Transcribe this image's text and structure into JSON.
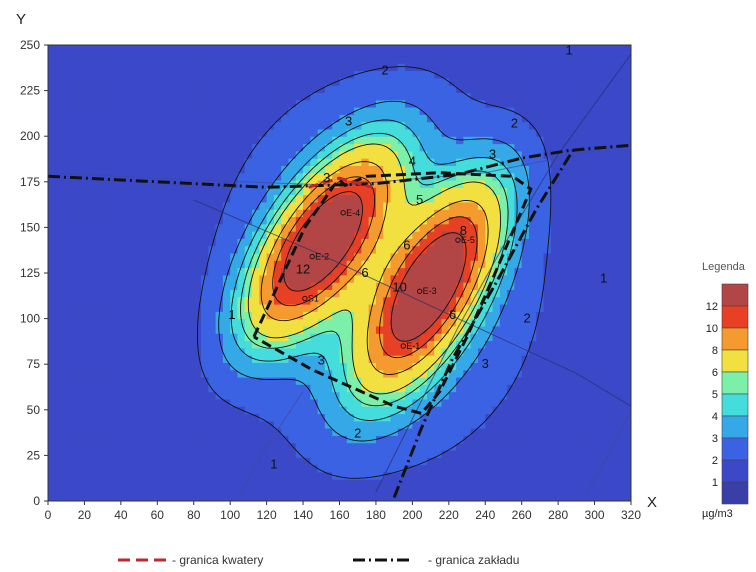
{
  "chart_data": {
    "type": "heatmap",
    "xlabel": "X",
    "ylabel": "Y",
    "xlim": [
      0,
      320
    ],
    "ylim": [
      0,
      250
    ],
    "x_ticks": [
      0,
      20,
      40,
      60,
      80,
      100,
      120,
      140,
      160,
      180,
      200,
      220,
      240,
      260,
      280,
      300,
      320
    ],
    "y_ticks": [
      0,
      25,
      50,
      75,
      100,
      125,
      150,
      175,
      200,
      225,
      250
    ],
    "unit": "µg/m3",
    "legend": {
      "title": "Legenda",
      "levels": [
        1,
        2,
        3,
        4,
        5,
        6,
        8,
        10,
        12
      ],
      "colors": [
        "#3a3fa8",
        "#3b49c9",
        "#3c62e4",
        "#35a9e8",
        "#45dcdc",
        "#7cf0a8",
        "#f2e040",
        "#f59a2e",
        "#e84025",
        "#b24545"
      ]
    },
    "hotspots": [
      {
        "x": 150,
        "y": 142,
        "sx": 16,
        "sy": 38,
        "amp": 12.4,
        "rot": 35
      },
      {
        "x": 210,
        "y": 118,
        "sx": 16,
        "sy": 40,
        "amp": 12.2,
        "rot": 30
      }
    ],
    "background": 1.0,
    "plume": {
      "x": 182,
      "y": 125,
      "sx": 60,
      "sy": 72,
      "amp": 3.0
    },
    "contour_labels": [
      {
        "text": "1",
        "x": 101,
        "y": 102
      },
      {
        "text": "1",
        "x": 124,
        "y": 20
      },
      {
        "text": "1",
        "x": 305,
        "y": 122
      },
      {
        "text": "1",
        "x": 286,
        "y": 247
      },
      {
        "text": "2",
        "x": 185,
        "y": 236
      },
      {
        "text": "2",
        "x": 256,
        "y": 207
      },
      {
        "text": "2",
        "x": 263,
        "y": 100
      },
      {
        "text": "2",
        "x": 170,
        "y": 37
      },
      {
        "text": "3",
        "x": 165,
        "y": 208
      },
      {
        "text": "3",
        "x": 244,
        "y": 190
      },
      {
        "text": "3",
        "x": 240,
        "y": 75
      },
      {
        "text": "3",
        "x": 150,
        "y": 77
      },
      {
        "text": "4",
        "x": 200,
        "y": 186
      },
      {
        "text": "5",
        "x": 204,
        "y": 165
      },
      {
        "text": "6",
        "x": 174,
        "y": 125
      },
      {
        "text": "6",
        "x": 197,
        "y": 140
      },
      {
        "text": "6",
        "x": 222,
        "y": 102
      },
      {
        "text": "8",
        "x": 228,
        "y": 148
      },
      {
        "text": "10",
        "x": 193,
        "y": 117
      },
      {
        "text": "12",
        "x": 140,
        "y": 127
      },
      {
        "text": "3",
        "x": 153,
        "y": 177
      }
    ],
    "stations": [
      {
        "name": "E-4",
        "x": 162,
        "y": 158
      },
      {
        "name": "E-2",
        "x": 145,
        "y": 134
      },
      {
        "name": "S1",
        "x": 141,
        "y": 111
      },
      {
        "name": "E-3",
        "x": 204,
        "y": 115
      },
      {
        "name": "E-5",
        "x": 225,
        "y": 143
      },
      {
        "name": "E-1",
        "x": 195,
        "y": 85
      }
    ],
    "boundary_kwatery": [
      [
        113,
        90
      ],
      [
        141,
        150
      ],
      [
        157,
        173
      ],
      [
        160,
        176
      ],
      [
        163,
        173
      ],
      [
        175,
        178
      ],
      [
        215,
        180
      ],
      [
        255,
        178
      ],
      [
        265,
        171
      ],
      [
        245,
        124
      ],
      [
        230,
        90
      ],
      [
        215,
        60
      ],
      [
        205,
        48
      ],
      [
        190,
        52
      ],
      [
        145,
        72
      ],
      [
        113,
        90
      ]
    ],
    "boundary_zakladu": [
      [
        0,
        178
      ],
      [
        60,
        175
      ],
      [
        120,
        172
      ],
      [
        180,
        174
      ],
      [
        225,
        179
      ],
      [
        260,
        188
      ],
      [
        285,
        192
      ],
      [
        295,
        193
      ],
      [
        320,
        195
      ]
    ],
    "boundary_zakladu_diag": [
      [
        190,
        2
      ],
      [
        205,
        40
      ],
      [
        222,
        78
      ],
      [
        245,
        118
      ],
      [
        268,
        160
      ],
      [
        288,
        192
      ]
    ],
    "thin_lines": [
      [
        [
          80,
          165
        ],
        [
          150,
          135
        ],
        [
          225,
          100
        ],
        [
          290,
          70
        ],
        [
          320,
          52
        ]
      ],
      [
        [
          180,
          5
        ],
        [
          200,
          45
        ],
        [
          225,
          95
        ],
        [
          250,
          140
        ],
        [
          280,
          190
        ],
        [
          320,
          245
        ]
      ],
      [
        [
          0,
          180
        ],
        [
          80,
          176
        ],
        [
          160,
          173
        ],
        [
          240,
          180
        ],
        [
          320,
          196
        ]
      ],
      [
        [
          105,
          3
        ],
        [
          120,
          30
        ],
        [
          140,
          60
        ]
      ],
      [
        [
          295,
          3
        ],
        [
          310,
          30
        ],
        [
          320,
          50
        ]
      ]
    ]
  },
  "footer": {
    "kwatery_label": "- granica kwatery",
    "zakladu_label": "-  granica zakładu"
  }
}
